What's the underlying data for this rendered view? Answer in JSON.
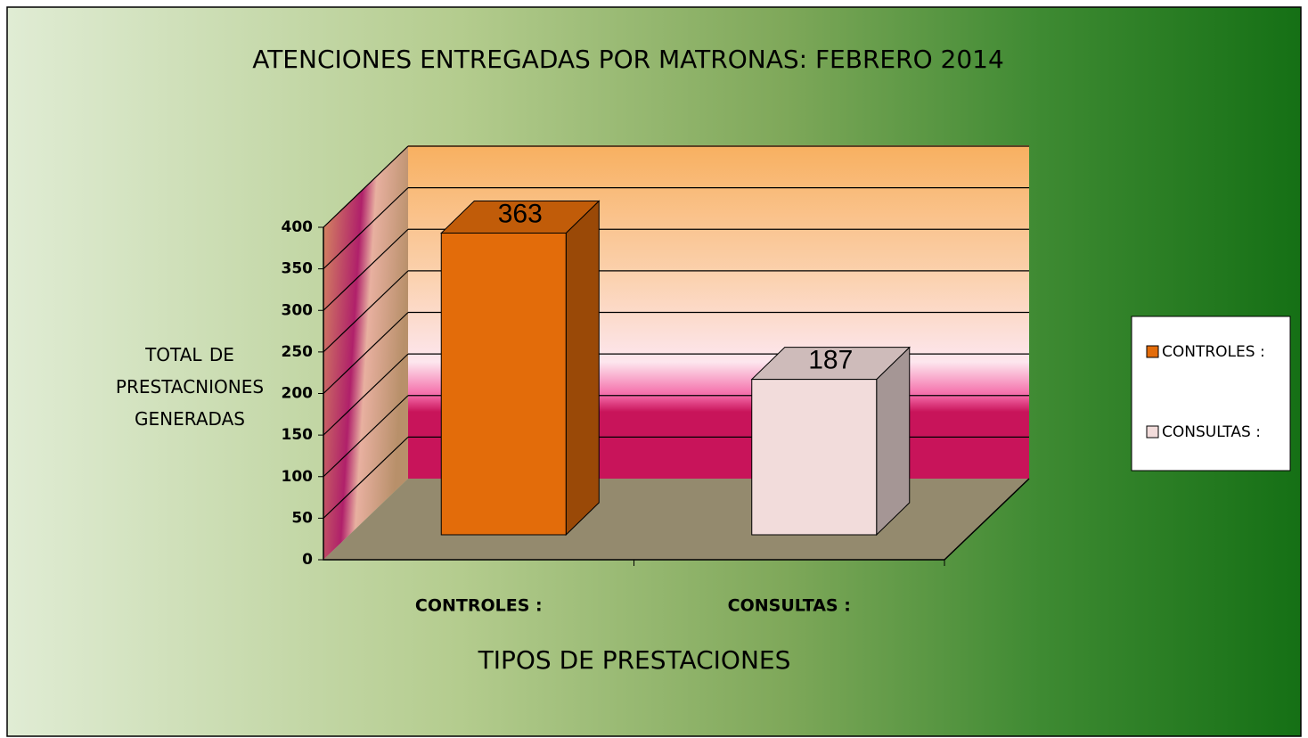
{
  "chart_data": {
    "type": "bar3d",
    "title": "ATENCIONES  ENTREGADAS POR  MATRONAS:  FEBRERO  2014",
    "y_label": "TOTAL DE PRESTACNIONES GENERADAS",
    "x_label": "TIPOS  DE PRESTACIONES",
    "categories": [
      "CONTROLES :",
      "CONSULTAS :"
    ],
    "values": [
      363,
      187
    ],
    "colors": [
      "#e36c0a",
      "#f2dcdb"
    ],
    "ylim": [
      0,
      400
    ],
    "yticks": [
      0,
      50,
      100,
      150,
      200,
      250,
      300,
      350,
      400
    ],
    "grid": true,
    "legend": "right"
  }
}
